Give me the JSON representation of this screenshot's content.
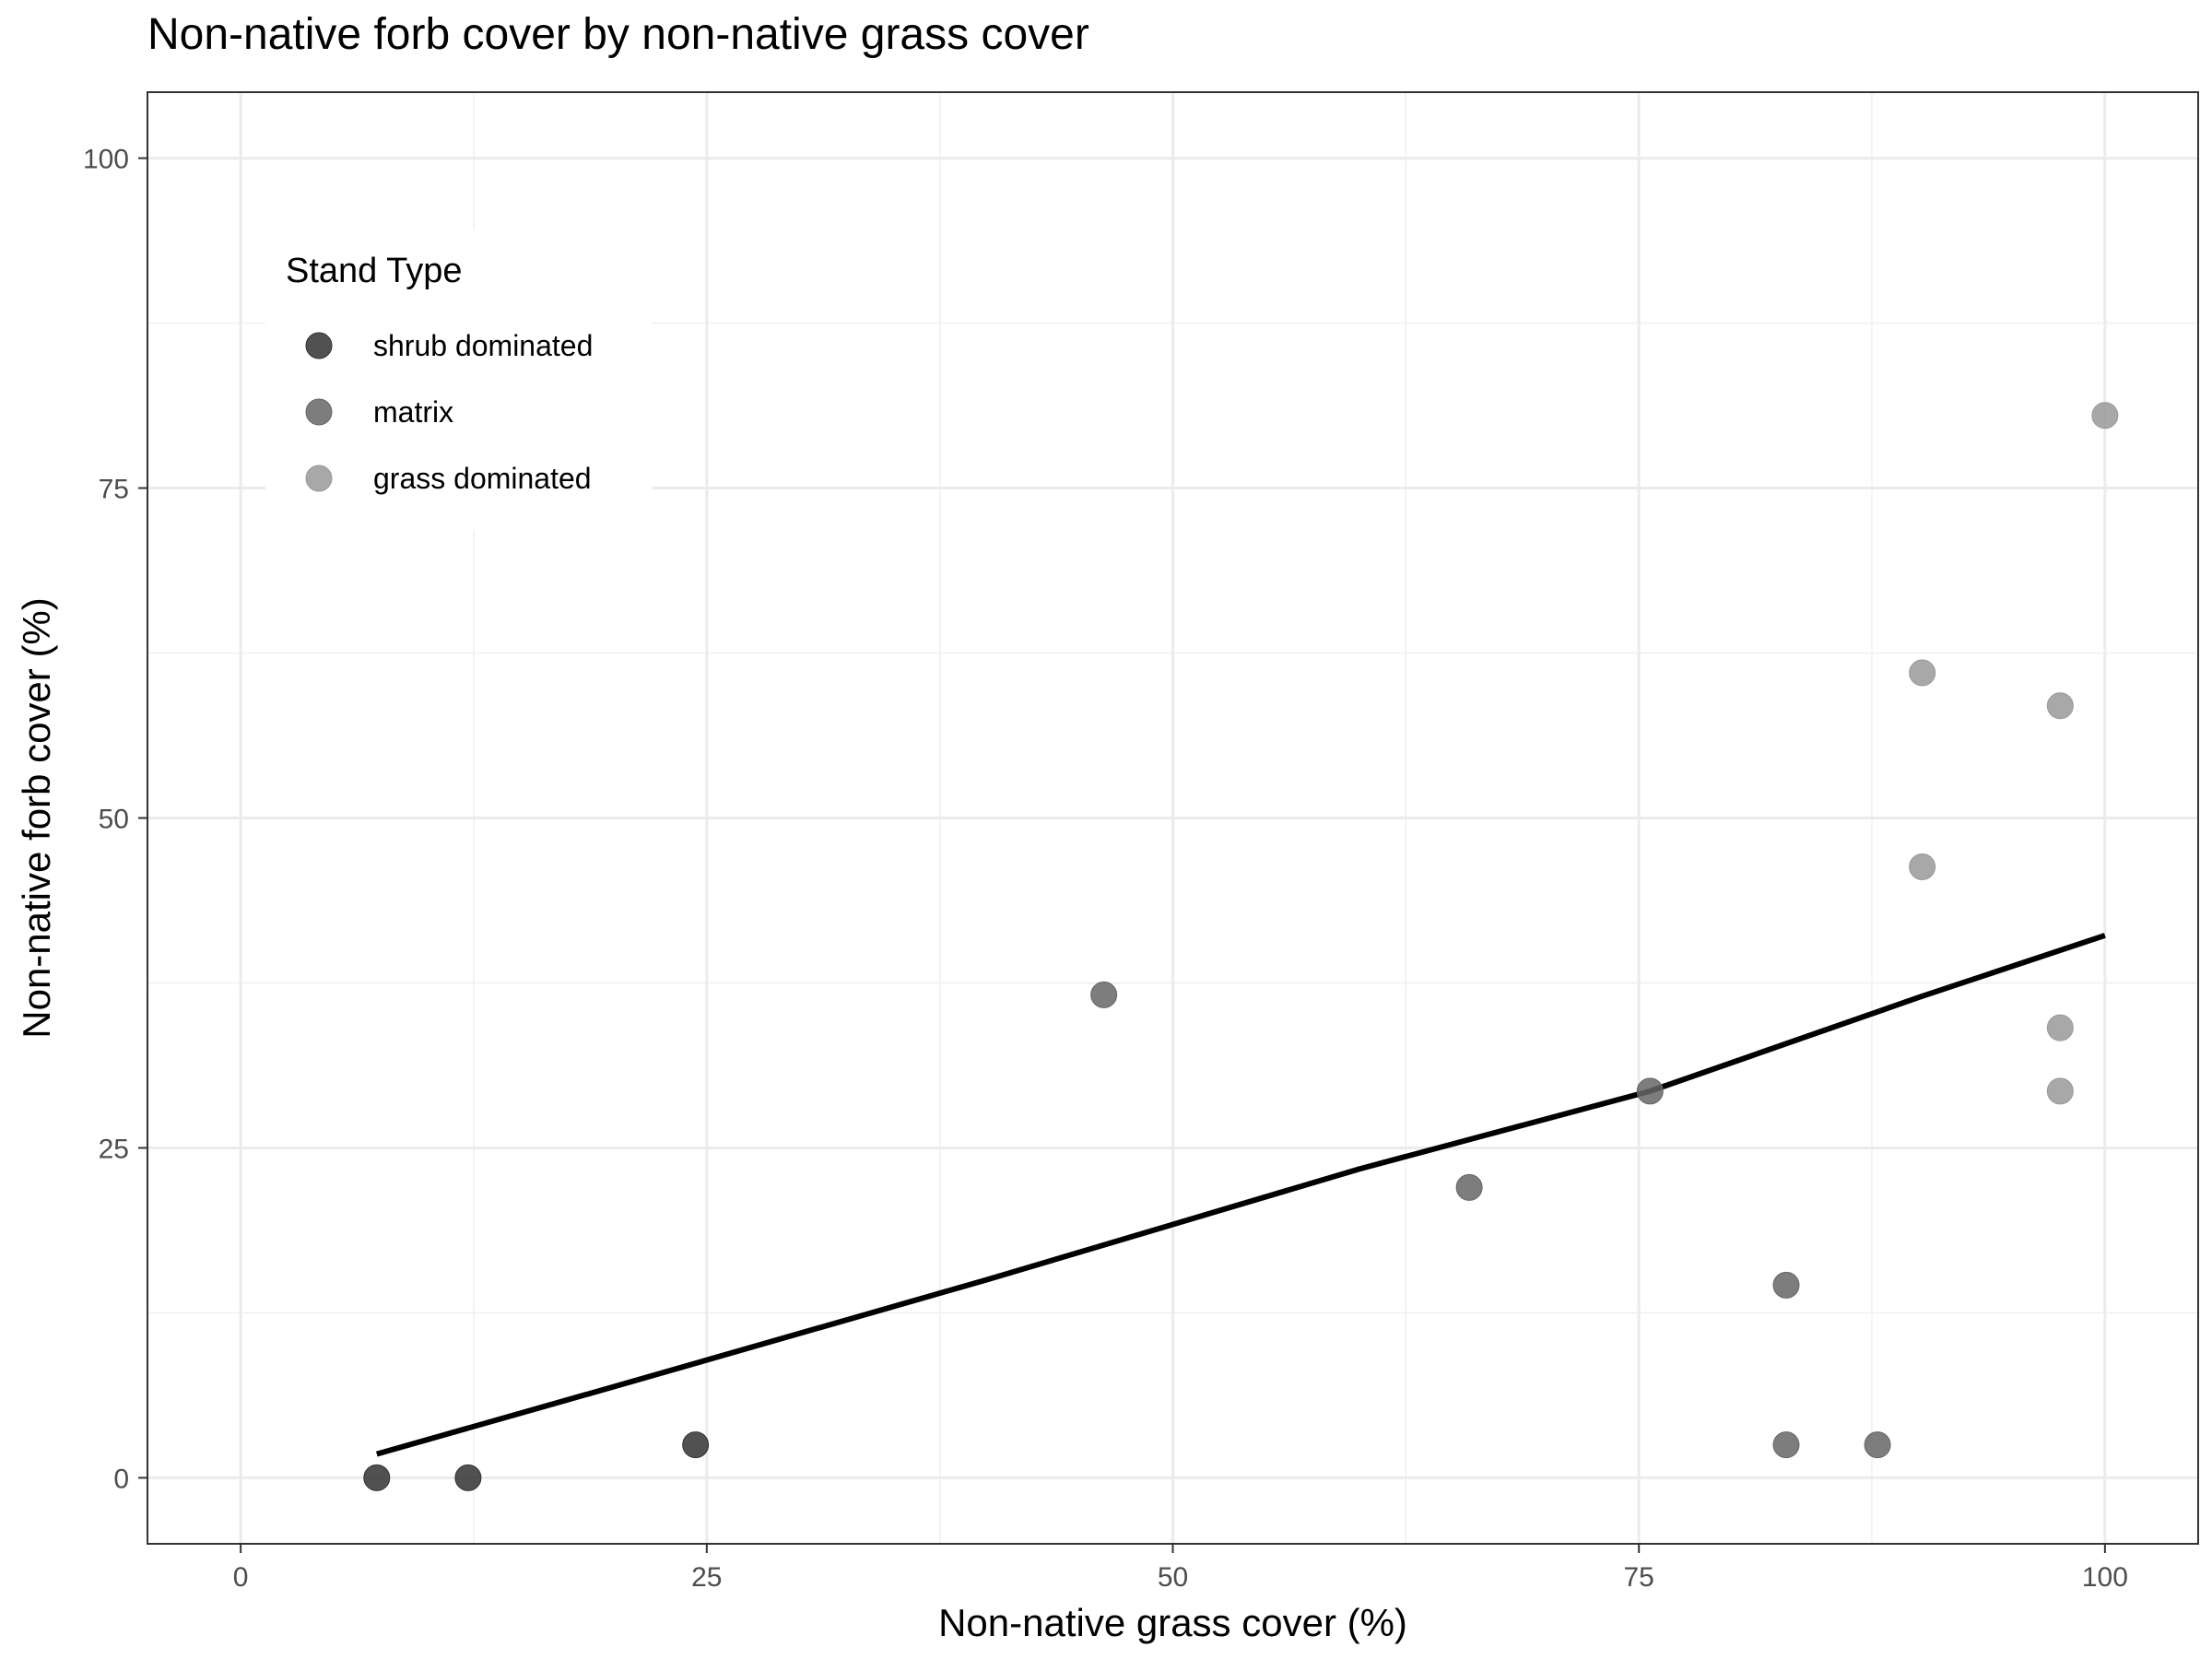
{
  "title": "Non-native forb cover by non-native grass cover",
  "chart_data": {
    "type": "scatter",
    "title": "Non-native forb cover by non-native grass cover",
    "xlabel": "Non-native grass cover (%)",
    "ylabel": "Non-native forb cover (%)",
    "xlim": [
      -5,
      105
    ],
    "ylim": [
      -5,
      105
    ],
    "xticks": [
      0,
      25,
      50,
      75,
      100
    ],
    "yticks": [
      0,
      25,
      50,
      75,
      100
    ],
    "grid": true,
    "legend": {
      "title": "Stand Type",
      "placement": "top-left inside",
      "entries": [
        {
          "label": "shrub dominated",
          "color": "#333333"
        },
        {
          "label": "matrix",
          "color": "#666666"
        },
        {
          "label": "grass dominated",
          "color": "#999999"
        }
      ]
    },
    "series": [
      {
        "name": "shrub dominated",
        "color": "#333333",
        "points": [
          [
            7.3,
            0
          ],
          [
            12.2,
            0
          ],
          [
            24.4,
            2.5
          ]
        ]
      },
      {
        "name": "matrix",
        "color": "#666666",
        "points": [
          [
            46.3,
            36.6
          ],
          [
            65.9,
            22.0
          ],
          [
            75.6,
            29.3
          ],
          [
            82.9,
            14.6
          ],
          [
            82.9,
            2.5
          ],
          [
            87.8,
            2.5
          ]
        ]
      },
      {
        "name": "grass dominated",
        "color": "#999999",
        "points": [
          [
            90.2,
            61.0
          ],
          [
            90.2,
            46.3
          ],
          [
            97.6,
            58.5
          ],
          [
            97.6,
            34.1
          ],
          [
            97.6,
            29.3
          ],
          [
            100,
            80.5
          ]
        ]
      }
    ],
    "fit_line": {
      "color": "#000000",
      "points": [
        [
          7.3,
          1.8
        ],
        [
          20,
          6.9
        ],
        [
          40,
          15.0
        ],
        [
          60,
          23.4
        ],
        [
          75.6,
          29.3
        ],
        [
          90,
          36.4
        ],
        [
          100,
          41.1
        ]
      ]
    }
  }
}
